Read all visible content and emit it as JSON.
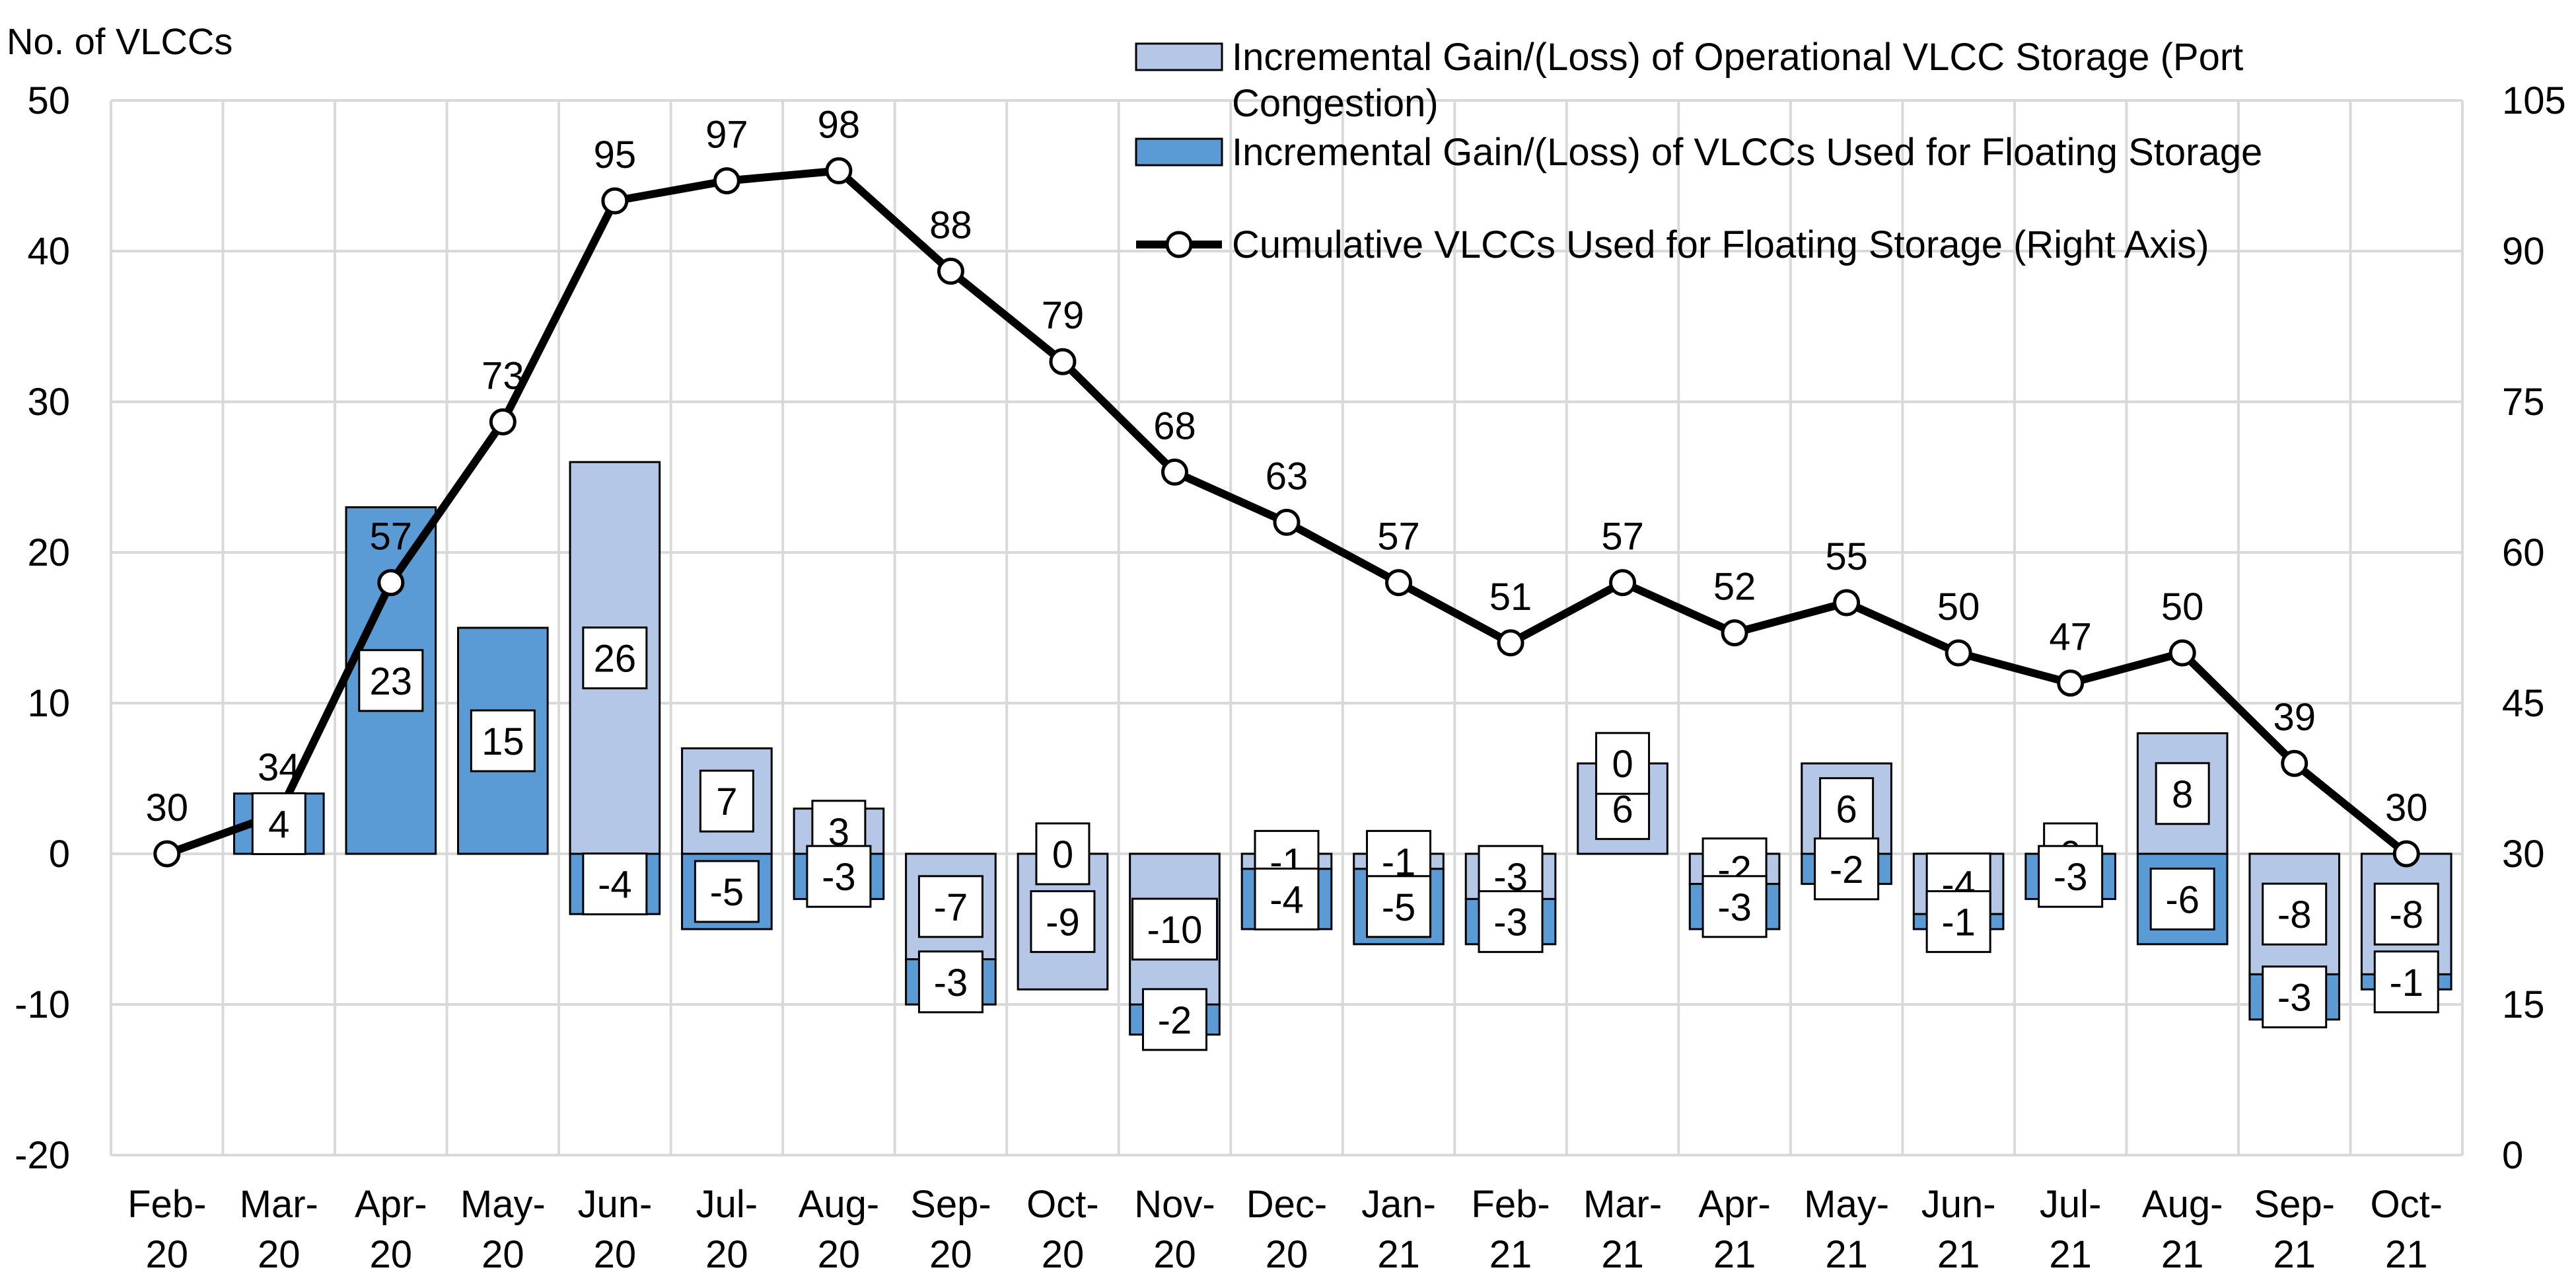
{
  "chart_data": {
    "type": "bar",
    "y_left_title": "No. of VLCCs",
    "left_axis": {
      "min": -20,
      "max": 50,
      "step": 10,
      "ticks": [
        "-20",
        "-10",
        "0",
        "10",
        "20",
        "30",
        "40",
        "50"
      ]
    },
    "right_axis": {
      "min": 0,
      "max": 105,
      "step": 15,
      "ticks": [
        "0",
        "15",
        "30",
        "45",
        "60",
        "75",
        "90",
        "105"
      ]
    },
    "categories": [
      [
        "Feb-",
        "20"
      ],
      [
        "Mar-",
        "20"
      ],
      [
        "Apr-",
        "20"
      ],
      [
        "May-",
        "20"
      ],
      [
        "Jun-",
        "20"
      ],
      [
        "Jul-",
        "20"
      ],
      [
        "Aug-",
        "20"
      ],
      [
        "Sep-",
        "20"
      ],
      [
        "Oct-",
        "20"
      ],
      [
        "Nov-",
        "20"
      ],
      [
        "Dec-",
        "20"
      ],
      [
        "Jan-",
        "21"
      ],
      [
        "Feb-",
        "21"
      ],
      [
        "Mar-",
        "21"
      ],
      [
        "Apr-",
        "21"
      ],
      [
        "May-",
        "21"
      ],
      [
        "Jun-",
        "21"
      ],
      [
        "Jul-",
        "21"
      ],
      [
        "Aug-",
        "21"
      ],
      [
        "Sep-",
        "21"
      ],
      [
        "Oct-",
        "21"
      ]
    ],
    "grid": true,
    "legend_position": "top-right",
    "series": [
      {
        "name": "Incremental Gain/(Loss) of Operational VLCC Storage (Port Congestion)",
        "legend_lines": [
          "Incremental Gain/(Loss) of Operational VLCC Storage (Port",
          "Congestion)"
        ],
        "type": "bar",
        "axis": "left",
        "color": "#b4c7e7",
        "values": [
          null,
          null,
          null,
          null,
          26,
          7,
          3,
          -7,
          -9,
          -10,
          -1,
          -1,
          -3,
          6,
          -2,
          6,
          -4,
          0,
          8,
          -8,
          -8
        ],
        "labels": [
          "",
          "",
          "",
          "",
          "26",
          "7",
          "3",
          "-7",
          "-9",
          "-10",
          "-1",
          "-1",
          "-3",
          "6",
          "-2",
          "6",
          "-4",
          "0",
          "8",
          "-8",
          "-8"
        ]
      },
      {
        "name": "Incremental Gain/(Loss) of VLCCs Used for Floating Storage",
        "legend_lines": [
          "Incremental Gain/(Loss) of VLCCs Used for Floating Storage"
        ],
        "type": "bar",
        "axis": "left",
        "color": "#5b9bd5",
        "values": [
          null,
          4,
          23,
          15,
          -4,
          -5,
          -3,
          -3,
          0,
          -2,
          -4,
          -5,
          -3,
          0,
          -3,
          -2,
          -1,
          -3,
          -6,
          -3,
          -1
        ],
        "labels": [
          "",
          "4",
          "23",
          "15",
          "-4",
          "-5",
          "-3",
          "-3",
          "0",
          "-2",
          "-4",
          "-5",
          "-3",
          "0",
          "-3",
          "-2",
          "-1",
          "-3",
          "-6",
          "-3",
          "-1"
        ]
      },
      {
        "name": "Cumulative VLCCs Used for Floating Storage (Right Axis)",
        "legend_lines": [
          "Cumulative VLCCs Used for Floating Storage (Right Axis)"
        ],
        "type": "line",
        "axis": "right",
        "color": "#000000",
        "values": [
          30,
          34,
          57,
          73,
          95,
          97,
          98,
          88,
          79,
          68,
          63,
          57,
          51,
          57,
          52,
          55,
          50,
          47,
          50,
          39,
          30
        ],
        "labels": [
          "30",
          "34",
          "57",
          "73",
          "95",
          "97",
          "98",
          "88",
          "79",
          "68",
          "63",
          "57",
          "51",
          "57",
          "52",
          "55",
          "50",
          "47",
          "50",
          "39",
          "30"
        ]
      }
    ]
  }
}
